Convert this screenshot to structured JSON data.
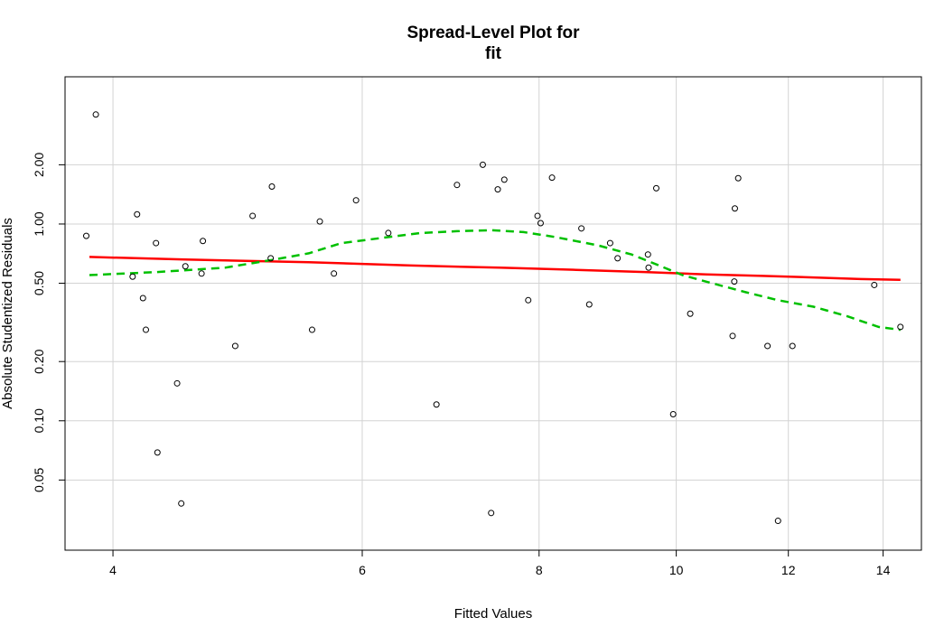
{
  "chart_data": {
    "type": "scatter",
    "title": "Spread-Level Plot for",
    "subtitle": "fit",
    "xlabel": "Fitted Values",
    "ylabel": "Absolute Studentized Residuals",
    "x_scale": "log",
    "y_scale": "log",
    "xlim": [
      3.7,
      14.9
    ],
    "ylim": [
      0.022,
      5.6
    ],
    "x_ticks": [
      4,
      6,
      8,
      10,
      12,
      14
    ],
    "x_tick_labels": [
      "4",
      "6",
      "8",
      "10",
      "12",
      "14"
    ],
    "y_ticks": [
      0.05,
      0.1,
      0.2,
      0.5,
      1.0,
      2.0
    ],
    "y_tick_labels": [
      "0.05",
      "0.10",
      "0.20",
      "0.50",
      "1.00",
      "2.00"
    ],
    "grid": true,
    "points": [
      {
        "x": 3.83,
        "y": 0.87
      },
      {
        "x": 3.89,
        "y": 3.6
      },
      {
        "x": 4.13,
        "y": 0.54
      },
      {
        "x": 4.16,
        "y": 1.12
      },
      {
        "x": 4.2,
        "y": 0.42
      },
      {
        "x": 4.22,
        "y": 0.29
      },
      {
        "x": 4.29,
        "y": 0.8
      },
      {
        "x": 4.3,
        "y": 0.069
      },
      {
        "x": 4.44,
        "y": 0.155
      },
      {
        "x": 4.47,
        "y": 0.038
      },
      {
        "x": 4.5,
        "y": 0.61
      },
      {
        "x": 4.62,
        "y": 0.56
      },
      {
        "x": 4.63,
        "y": 0.82
      },
      {
        "x": 4.88,
        "y": 0.24
      },
      {
        "x": 5.02,
        "y": 1.1
      },
      {
        "x": 5.17,
        "y": 0.67
      },
      {
        "x": 5.18,
        "y": 1.55
      },
      {
        "x": 5.53,
        "y": 0.29
      },
      {
        "x": 5.6,
        "y": 1.03
      },
      {
        "x": 5.73,
        "y": 0.56
      },
      {
        "x": 5.94,
        "y": 1.32
      },
      {
        "x": 6.26,
        "y": 0.9
      },
      {
        "x": 6.77,
        "y": 0.121
      },
      {
        "x": 7.0,
        "y": 1.58
      },
      {
        "x": 7.3,
        "y": 2.0
      },
      {
        "x": 7.4,
        "y": 0.034
      },
      {
        "x": 7.48,
        "y": 1.5
      },
      {
        "x": 7.56,
        "y": 1.68
      },
      {
        "x": 7.86,
        "y": 0.41
      },
      {
        "x": 7.98,
        "y": 1.1
      },
      {
        "x": 8.02,
        "y": 1.01
      },
      {
        "x": 8.17,
        "y": 1.72
      },
      {
        "x": 8.57,
        "y": 0.95
      },
      {
        "x": 8.68,
        "y": 0.39
      },
      {
        "x": 8.98,
        "y": 0.8
      },
      {
        "x": 9.09,
        "y": 0.67
      },
      {
        "x": 9.55,
        "y": 0.7
      },
      {
        "x": 9.56,
        "y": 0.6
      },
      {
        "x": 9.68,
        "y": 1.52
      },
      {
        "x": 9.95,
        "y": 0.108
      },
      {
        "x": 10.23,
        "y": 0.35
      },
      {
        "x": 10.96,
        "y": 0.27
      },
      {
        "x": 10.99,
        "y": 0.51
      },
      {
        "x": 11.0,
        "y": 1.2
      },
      {
        "x": 11.06,
        "y": 1.71
      },
      {
        "x": 11.6,
        "y": 0.24
      },
      {
        "x": 11.8,
        "y": 0.031
      },
      {
        "x": 12.08,
        "y": 0.24
      },
      {
        "x": 13.8,
        "y": 0.49
      },
      {
        "x": 14.4,
        "y": 0.3
      }
    ],
    "series": [
      {
        "style": "solid",
        "color": "#ff0000",
        "points": [
          [
            3.85,
            0.68
          ],
          [
            4.5,
            0.66
          ],
          [
            5.5,
            0.64
          ],
          [
            6.5,
            0.615
          ],
          [
            7.5,
            0.6
          ],
          [
            8.5,
            0.585
          ],
          [
            9.5,
            0.57
          ],
          [
            10.5,
            0.555
          ],
          [
            11.5,
            0.545
          ],
          [
            12.5,
            0.535
          ],
          [
            13.5,
            0.525
          ],
          [
            14.4,
            0.52
          ]
        ]
      },
      {
        "style": "dashed",
        "color": "#00c000",
        "points": [
          [
            3.85,
            0.55
          ],
          [
            4.3,
            0.57
          ],
          [
            4.8,
            0.6
          ],
          [
            5.2,
            0.66
          ],
          [
            5.5,
            0.71
          ],
          [
            5.8,
            0.8
          ],
          [
            6.2,
            0.85
          ],
          [
            6.6,
            0.9
          ],
          [
            7.0,
            0.92
          ],
          [
            7.4,
            0.93
          ],
          [
            7.8,
            0.91
          ],
          [
            8.2,
            0.86
          ],
          [
            8.8,
            0.78
          ],
          [
            9.3,
            0.7
          ],
          [
            9.7,
            0.62
          ],
          [
            10.1,
            0.55
          ],
          [
            10.6,
            0.5
          ],
          [
            11.2,
            0.45
          ],
          [
            11.8,
            0.41
          ],
          [
            12.5,
            0.38
          ],
          [
            13.2,
            0.34
          ],
          [
            13.9,
            0.3
          ],
          [
            14.4,
            0.29
          ]
        ]
      }
    ]
  }
}
